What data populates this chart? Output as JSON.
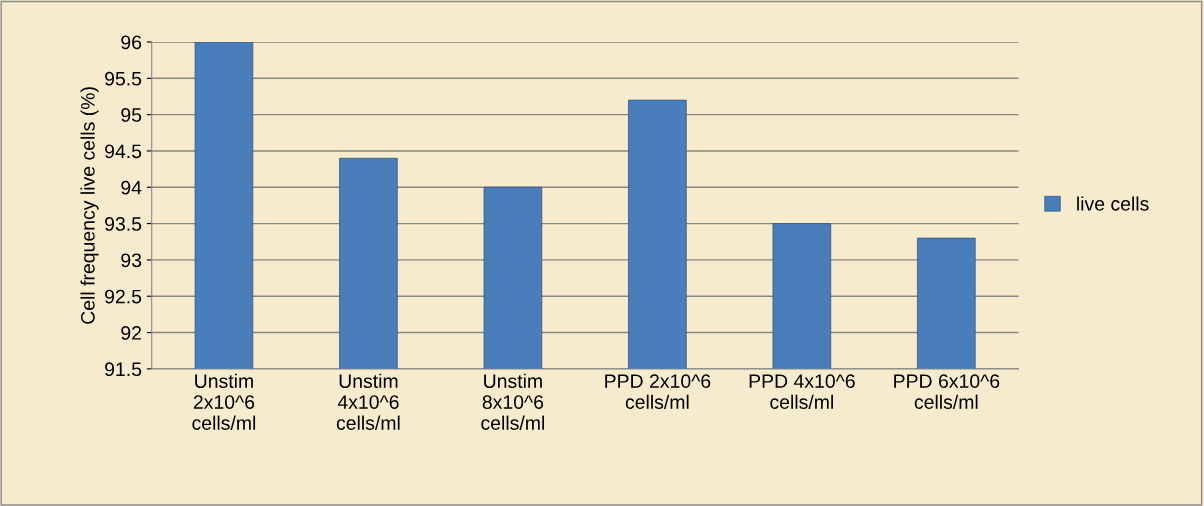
{
  "chart_data": {
    "type": "bar",
    "ylabel": "Cell frequency live cells (%)",
    "categories": [
      "Unstim\n2x10^6\ncells/ml",
      "Unstim\n4x10^6\ncells/ml",
      "Unstim\n8x10^6\ncells/ml",
      "PPD 2x10^6\ncells/ml",
      "PPD 4x10^6\ncells/ml",
      "PPD 6x10^6\ncells/ml"
    ],
    "series": [
      {
        "name": "live cells",
        "color": "#4a7ebb",
        "values": [
          96,
          94.4,
          94.0,
          95.2,
          93.5,
          93.3
        ]
      }
    ],
    "ylim": [
      91.5,
      96
    ],
    "yticks": [
      91.5,
      92,
      92.5,
      93,
      93.5,
      94,
      94.5,
      95,
      95.5,
      96
    ],
    "grid": "y",
    "legend": "right"
  }
}
